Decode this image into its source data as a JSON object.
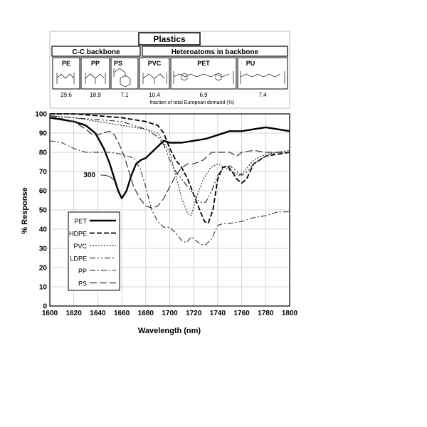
{
  "table": {
    "title": "Plastics",
    "groups": [
      {
        "label": "C-C backbone",
        "polymers": [
          "PE",
          "PP",
          "PS",
          "PVC"
        ],
        "values": [
          "29.6",
          "18.9",
          "7.1",
          "10.4"
        ]
      },
      {
        "label": "Heteroatoms in backbone",
        "polymers": [
          "PET",
          "PU"
        ],
        "values": [
          "6.9",
          "7.4"
        ]
      }
    ],
    "footnote": "fraction of total European demand (%)"
  },
  "chart_data": {
    "type": "line",
    "xlabel": "Wavelength (nm)",
    "ylabel": "% Response",
    "xlim": [
      1600,
      1800
    ],
    "ylim": [
      0,
      100
    ],
    "xticks": [
      "1600",
      "1620",
      "1640",
      "1660",
      "1680",
      "1700",
      "1720",
      "1740",
      "1760",
      "1780",
      "1800"
    ],
    "yticks": [
      "0",
      "10",
      "20",
      "30",
      "40",
      "50",
      "60",
      "70",
      "80",
      "90",
      "100"
    ],
    "grid": true,
    "legend_position": "lower-left",
    "annotation": {
      "text": "300",
      "x": 1634,
      "y": 67,
      "target_x": 1655,
      "target_y": 64
    },
    "series": [
      {
        "name": "PET",
        "style": "solid",
        "width": 2.4,
        "color": "#000000",
        "points": [
          [
            1600,
            98
          ],
          [
            1610,
            97
          ],
          [
            1620,
            96
          ],
          [
            1630,
            94
          ],
          [
            1638,
            90
          ],
          [
            1645,
            82
          ],
          [
            1650,
            74
          ],
          [
            1654,
            66
          ],
          [
            1657,
            60
          ],
          [
            1660,
            56
          ],
          [
            1664,
            60
          ],
          [
            1668,
            68
          ],
          [
            1672,
            74
          ],
          [
            1676,
            76
          ],
          [
            1680,
            77
          ],
          [
            1685,
            80
          ],
          [
            1690,
            83
          ],
          [
            1695,
            86
          ],
          [
            1700,
            85
          ],
          [
            1710,
            85
          ],
          [
            1720,
            86
          ],
          [
            1730,
            87
          ],
          [
            1740,
            89
          ],
          [
            1750,
            91
          ],
          [
            1760,
            91
          ],
          [
            1770,
            92
          ],
          [
            1780,
            93
          ],
          [
            1790,
            92
          ],
          [
            1800,
            91
          ]
        ]
      },
      {
        "name": "HDPE",
        "style": "dash",
        "width": 1.8,
        "color": "#000000",
        "points": [
          [
            1600,
            100
          ],
          [
            1620,
            100
          ],
          [
            1640,
            99
          ],
          [
            1660,
            98
          ],
          [
            1680,
            96
          ],
          [
            1690,
            94
          ],
          [
            1695,
            90
          ],
          [
            1700,
            82
          ],
          [
            1705,
            76
          ],
          [
            1710,
            72
          ],
          [
            1715,
            66
          ],
          [
            1720,
            58
          ],
          [
            1725,
            50
          ],
          [
            1729,
            44
          ],
          [
            1732,
            43
          ],
          [
            1736,
            50
          ],
          [
            1740,
            66
          ],
          [
            1744,
            72
          ],
          [
            1748,
            73
          ],
          [
            1752,
            70
          ],
          [
            1756,
            66
          ],
          [
            1760,
            64
          ],
          [
            1764,
            66
          ],
          [
            1770,
            74
          ],
          [
            1780,
            78
          ],
          [
            1790,
            79
          ],
          [
            1800,
            80
          ]
        ]
      },
      {
        "name": "PVC",
        "style": "dot",
        "width": 1.2,
        "color": "#333333",
        "points": [
          [
            1600,
            99
          ],
          [
            1620,
            98
          ],
          [
            1640,
            96
          ],
          [
            1660,
            94
          ],
          [
            1680,
            92
          ],
          [
            1690,
            90
          ],
          [
            1700,
            80
          ],
          [
            1705,
            68
          ],
          [
            1710,
            56
          ],
          [
            1715,
            48
          ],
          [
            1718,
            47
          ],
          [
            1722,
            56
          ],
          [
            1728,
            66
          ],
          [
            1734,
            72
          ],
          [
            1740,
            74
          ],
          [
            1746,
            72
          ],
          [
            1752,
            70
          ],
          [
            1758,
            68
          ],
          [
            1762,
            70
          ],
          [
            1770,
            76
          ],
          [
            1780,
            79
          ],
          [
            1790,
            80
          ],
          [
            1800,
            80
          ]
        ]
      },
      {
        "name": "LDPE",
        "style": "dashdotdot",
        "width": 1.2,
        "color": "#333333",
        "points": [
          [
            1600,
            99
          ],
          [
            1620,
            98
          ],
          [
            1640,
            97
          ],
          [
            1660,
            96
          ],
          [
            1680,
            92
          ],
          [
            1690,
            88
          ],
          [
            1695,
            84
          ],
          [
            1700,
            76
          ],
          [
            1705,
            70
          ],
          [
            1710,
            66
          ],
          [
            1715,
            62
          ],
          [
            1720,
            58
          ],
          [
            1725,
            54
          ],
          [
            1730,
            54
          ],
          [
            1735,
            60
          ],
          [
            1740,
            68
          ],
          [
            1745,
            72
          ],
          [
            1750,
            73
          ],
          [
            1756,
            70
          ],
          [
            1760,
            68
          ],
          [
            1765,
            70
          ],
          [
            1770,
            74
          ],
          [
            1780,
            78
          ],
          [
            1790,
            80
          ],
          [
            1800,
            81
          ]
        ]
      },
      {
        "name": "PP",
        "style": "dashdot",
        "width": 1.2,
        "color": "#444444",
        "points": [
          [
            1600,
            86
          ],
          [
            1610,
            85
          ],
          [
            1620,
            82
          ],
          [
            1630,
            80
          ],
          [
            1640,
            80
          ],
          [
            1650,
            80
          ],
          [
            1660,
            79
          ],
          [
            1670,
            77
          ],
          [
            1675,
            72
          ],
          [
            1680,
            62
          ],
          [
            1685,
            50
          ],
          [
            1690,
            44
          ],
          [
            1695,
            41
          ],
          [
            1700,
            41
          ],
          [
            1705,
            38
          ],
          [
            1710,
            34
          ],
          [
            1714,
            33
          ],
          [
            1718,
            36
          ],
          [
            1722,
            34
          ],
          [
            1726,
            32
          ],
          [
            1730,
            32
          ],
          [
            1735,
            35
          ],
          [
            1740,
            42
          ],
          [
            1745,
            43
          ],
          [
            1750,
            43
          ],
          [
            1760,
            44
          ],
          [
            1770,
            46
          ],
          [
            1780,
            47
          ],
          [
            1790,
            49
          ],
          [
            1800,
            49
          ]
        ]
      },
      {
        "name": "PS",
        "style": "longdash",
        "width": 1.2,
        "color": "#333333",
        "points": [
          [
            1600,
            99
          ],
          [
            1620,
            96
          ],
          [
            1630,
            92
          ],
          [
            1636,
            89
          ],
          [
            1640,
            89
          ],
          [
            1644,
            90
          ],
          [
            1650,
            91
          ],
          [
            1654,
            89
          ],
          [
            1658,
            84
          ],
          [
            1662,
            78
          ],
          [
            1666,
            70
          ],
          [
            1670,
            62
          ],
          [
            1675,
            56
          ],
          [
            1680,
            52
          ],
          [
            1685,
            51
          ],
          [
            1690,
            52
          ],
          [
            1695,
            56
          ],
          [
            1700,
            62
          ],
          [
            1705,
            68
          ],
          [
            1710,
            72
          ],
          [
            1715,
            74
          ],
          [
            1720,
            74
          ],
          [
            1728,
            76
          ],
          [
            1735,
            80
          ],
          [
            1742,
            80
          ],
          [
            1750,
            80
          ],
          [
            1756,
            78
          ],
          [
            1760,
            80
          ],
          [
            1770,
            81
          ],
          [
            1780,
            80
          ],
          [
            1790,
            80
          ],
          [
            1800,
            80
          ]
        ]
      }
    ]
  }
}
